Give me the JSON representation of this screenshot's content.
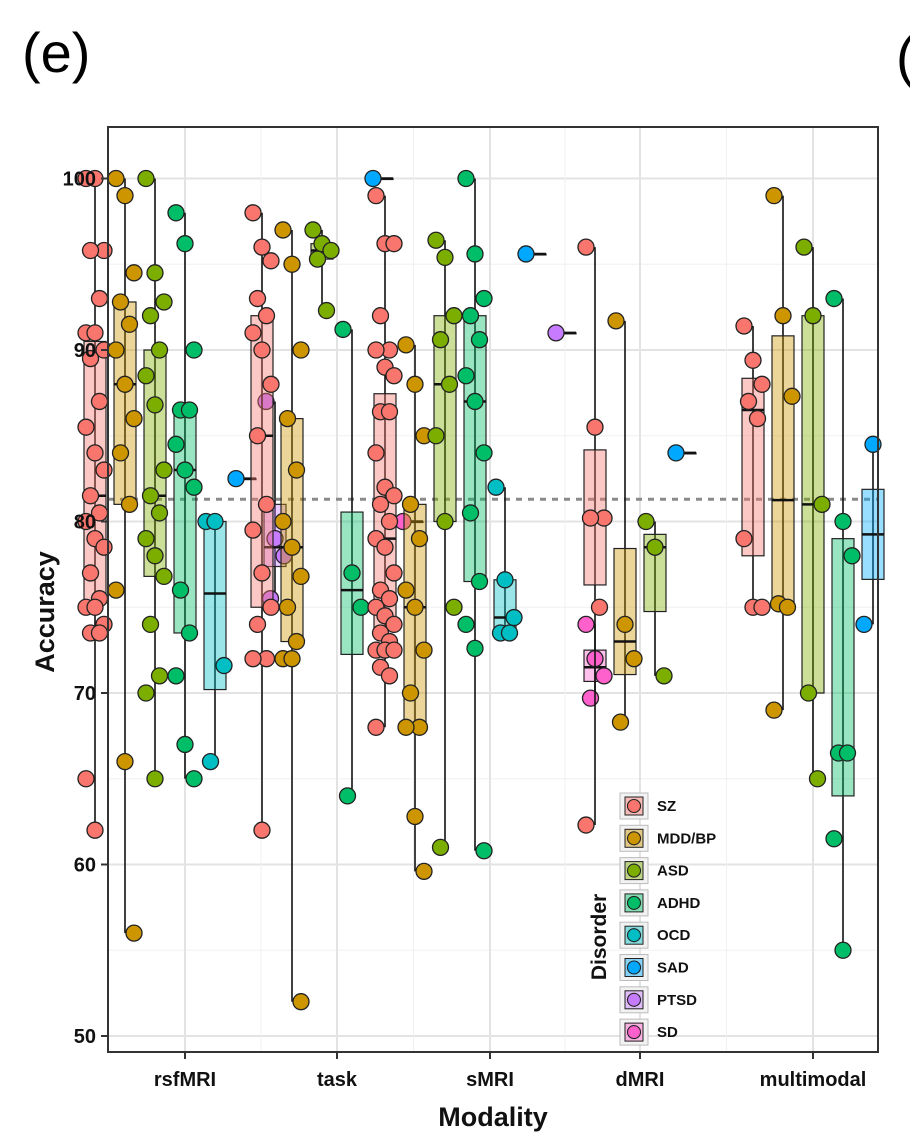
{
  "panel_label": "(e)",
  "edge_glyph": "(",
  "chart_data": {
    "type": "boxplot_with_points",
    "title": "",
    "xlabel": "Modality",
    "ylabel": "Accuracy",
    "ylim": [
      49,
      103
    ],
    "yticks": [
      50,
      60,
      70,
      80,
      90,
      100
    ],
    "grid": true,
    "reference_line": 81.3,
    "legend_title": "Disorder",
    "legend_position": "bottom-right-inside",
    "categories": [
      "rsfMRI",
      "task",
      "sMRI",
      "dMRI",
      "multimodal"
    ],
    "series": [
      {
        "name": "SZ",
        "color": "#F8766D"
      },
      {
        "name": "MDD/BP",
        "color": "#CD9600"
      },
      {
        "name": "ASD",
        "color": "#7CAE00"
      },
      {
        "name": "ADHD",
        "color": "#00BE67"
      },
      {
        "name": "OCD",
        "color": "#00BFC4"
      },
      {
        "name": "SAD",
        "color": "#00A9FF"
      },
      {
        "name": "PTSD",
        "color": "#C77CFF"
      },
      {
        "name": "SD",
        "color": "#FF61CC"
      }
    ],
    "groups": [
      {
        "modality": "rsfMRI",
        "disorder": "SZ",
        "points": [
          100,
          100,
          95.8,
          95.8,
          93,
          91,
          91,
          90,
          89.5,
          87,
          85.5,
          84,
          83,
          81.5,
          80.5,
          80,
          79,
          78.5,
          77,
          75.5,
          75,
          75,
          74,
          73.5,
          73.5,
          65,
          62
        ]
      },
      {
        "modality": "rsfMRI",
        "disorder": "MDD/BP",
        "points": [
          100,
          99,
          94.5,
          92.8,
          91.5,
          90,
          88,
          86,
          84,
          81,
          76,
          66,
          56
        ]
      },
      {
        "modality": "rsfMRI",
        "disorder": "ASD",
        "points": [
          100,
          94.5,
          92.8,
          92,
          90,
          88.5,
          86.8,
          83,
          81.5,
          80.5,
          79,
          78,
          76.8,
          74,
          71,
          70,
          65
        ]
      },
      {
        "modality": "rsfMRI",
        "disorder": "ADHD",
        "points": [
          98,
          96.2,
          90,
          86.5,
          86.5,
          84.5,
          83,
          82,
          76,
          73.5,
          71,
          67,
          65
        ]
      },
      {
        "modality": "rsfMRI",
        "disorder": "OCD",
        "points": [
          80,
          80,
          71.6,
          66
        ]
      },
      {
        "modality": "rsfMRI",
        "disorder": "SAD",
        "points": [
          82.5
        ]
      },
      {
        "modality": "rsfMRI",
        "disorder": "PTSD",
        "points": [
          87,
          79,
          78,
          75.5
        ]
      },
      {
        "modality": "task",
        "disorder": "SZ",
        "points": [
          98,
          96,
          95.2,
          93,
          92,
          91,
          90,
          88,
          85,
          81,
          79.5,
          77,
          75,
          74,
          72,
          72,
          62
        ]
      },
      {
        "modality": "task",
        "disorder": "MDD/BP",
        "points": [
          97,
          95,
          90,
          86,
          83,
          80,
          78.5,
          76.8,
          75,
          73,
          72,
          72,
          52
        ]
      },
      {
        "modality": "task",
        "disorder": "ASD",
        "points": [
          97,
          96.2,
          95.8,
          95.3,
          92.3
        ]
      },
      {
        "modality": "task",
        "disorder": "ADHD",
        "points": [
          91.2,
          77,
          75,
          64
        ]
      },
      {
        "modality": "task",
        "disorder": "SAD",
        "points": [
          100
        ]
      },
      {
        "modality": "task",
        "disorder": "SD",
        "points": [
          80
        ]
      },
      {
        "modality": "sMRI",
        "disorder": "SZ",
        "points": [
          99,
          96.2,
          96.2,
          92,
          90,
          90,
          89,
          88.5,
          86.4,
          86.4,
          84,
          82,
          81.5,
          81,
          80,
          79,
          78.5,
          77,
          76,
          75.5,
          75,
          74.5,
          74,
          73.5,
          73,
          72.5,
          72.5,
          72.5,
          71.5,
          71,
          68
        ]
      },
      {
        "modality": "sMRI",
        "disorder": "MDD/BP",
        "points": [
          90.3,
          88,
          85,
          81,
          79,
          76,
          75,
          72.5,
          70,
          68,
          68,
          62.8,
          59.6
        ]
      },
      {
        "modality": "sMRI",
        "disorder": "ASD",
        "points": [
          96.4,
          95.4,
          92,
          90.6,
          88,
          85,
          80,
          75,
          61
        ]
      },
      {
        "modality": "sMRI",
        "disorder": "ADHD",
        "points": [
          100,
          95.6,
          93,
          92,
          90.6,
          88.5,
          87,
          84,
          80.5,
          76.5,
          74,
          72.6,
          60.8
        ]
      },
      {
        "modality": "sMRI",
        "disorder": "OCD",
        "points": [
          82,
          76.6,
          74.4,
          73.5,
          73.5
        ]
      },
      {
        "modality": "sMRI",
        "disorder": "SAD",
        "points": [
          95.6
        ]
      },
      {
        "modality": "sMRI",
        "disorder": "PTSD",
        "points": [
          91
        ]
      },
      {
        "modality": "sMRI",
        "disorder": "SD",
        "points": [
          74,
          72,
          71,
          69.7
        ]
      },
      {
        "modality": "dMRI",
        "disorder": "SZ",
        "points": [
          96,
          85.5,
          80.2,
          80.2,
          75,
          62.3
        ]
      },
      {
        "modality": "dMRI",
        "disorder": "MDD/BP",
        "points": [
          91.7,
          74,
          72,
          68.3
        ]
      },
      {
        "modality": "dMRI",
        "disorder": "ASD",
        "points": [
          80,
          78.5,
          71
        ]
      },
      {
        "modality": "dMRI",
        "disorder": "SAD",
        "points": [
          84
        ]
      },
      {
        "modality": "multimodal",
        "disorder": "SZ",
        "points": [
          91.4,
          89.4,
          88,
          87,
          86,
          79,
          75,
          75
        ]
      },
      {
        "modality": "multimodal",
        "disorder": "MDD/BP",
        "points": [
          99,
          92,
          87.3,
          75.2,
          75,
          69
        ]
      },
      {
        "modality": "multimodal",
        "disorder": "ASD",
        "points": [
          96,
          92,
          81,
          70,
          65
        ]
      },
      {
        "modality": "multimodal",
        "disorder": "ADHD",
        "points": [
          93,
          80,
          78,
          66.5,
          66.5,
          61.5,
          55
        ]
      },
      {
        "modality": "multimodal",
        "disorder": "SAD",
        "points": [
          74,
          84.5
        ]
      }
    ]
  }
}
